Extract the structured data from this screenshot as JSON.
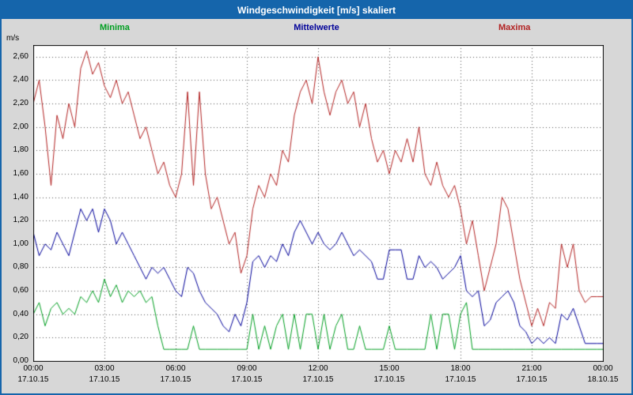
{
  "window": {
    "title": "Windgeschwindigkeit [m/s] skaliert"
  },
  "colors": {
    "titlebar": "#1565ab",
    "page_bg": "#d7d7d7",
    "plot_bg": "#ffffff",
    "plot_border": "#000000",
    "grid": "#555555",
    "minima": "#009e20",
    "mittelwerte": "#000099",
    "maxima": "#b22222"
  },
  "legend": [
    {
      "label": "Minima",
      "color": "#009e20"
    },
    {
      "label": "Mittelwerte",
      "color": "#000099"
    },
    {
      "label": "Maxima",
      "color": "#b22222"
    }
  ],
  "chart_data": {
    "type": "line",
    "title": "Windgeschwindigkeit [m/s] skaliert",
    "ylabel": "m/s",
    "xlabel": "",
    "grid": true,
    "legend_position": "top",
    "ylim": [
      0,
      2.7
    ],
    "ytick_step": 0.2,
    "ytick_labels": [
      "2,60",
      "2,40",
      "2,20",
      "2,00",
      "1,80",
      "1,60",
      "1,40",
      "1,20",
      "1,00",
      "0,80",
      "0,60",
      "0,40",
      "0,20",
      "0,00"
    ],
    "x_hours_span": 24,
    "sample_interval_minutes": 15,
    "xtick_hours": [
      0,
      3,
      6,
      9,
      12,
      15,
      18,
      21,
      24
    ],
    "xtick_times": [
      "00:00",
      "03:00",
      "06:00",
      "09:00",
      "12:00",
      "15:00",
      "18:00",
      "21:00",
      "00:00"
    ],
    "xtick_dates": [
      "17.10.15",
      "17.10.15",
      "17.10.15",
      "17.10.15",
      "17.10.15",
      "17.10.15",
      "17.10.15",
      "17.10.15",
      "18.10.15"
    ],
    "series": [
      {
        "name": "Minima",
        "color": "#009e20",
        "values": [
          0.4,
          0.5,
          0.3,
          0.45,
          0.5,
          0.4,
          0.45,
          0.4,
          0.55,
          0.5,
          0.6,
          0.5,
          0.7,
          0.55,
          0.65,
          0.5,
          0.6,
          0.55,
          0.6,
          0.5,
          0.55,
          0.3,
          0.1,
          0.1,
          0.1,
          0.1,
          0.1,
          0.3,
          0.1,
          0.1,
          0.1,
          0.1,
          0.1,
          0.1,
          0.1,
          0.1,
          0.1,
          0.4,
          0.1,
          0.3,
          0.1,
          0.3,
          0.4,
          0.1,
          0.4,
          0.1,
          0.4,
          0.4,
          0.1,
          0.4,
          0.1,
          0.3,
          0.4,
          0.1,
          0.1,
          0.3,
          0.1,
          0.1,
          0.1,
          0.1,
          0.3,
          0.1,
          0.1,
          0.1,
          0.1,
          0.1,
          0.1,
          0.4,
          0.1,
          0.4,
          0.4,
          0.1,
          0.4,
          0.5,
          0.1,
          0.1,
          0.1,
          0.1,
          0.1,
          0.1,
          0.1,
          0.1,
          0.1,
          0.1,
          0.1,
          0.1,
          0.1,
          0.1,
          0.1,
          0.1,
          0.1,
          0.1,
          0.1,
          0.1,
          0.1,
          0.1,
          0.1
        ]
      },
      {
        "name": "Mittelwerte",
        "color": "#000099",
        "values": [
          1.1,
          0.9,
          1.0,
          0.95,
          1.1,
          1.0,
          0.9,
          1.1,
          1.3,
          1.2,
          1.3,
          1.1,
          1.3,
          1.2,
          1.0,
          1.1,
          1.0,
          0.9,
          0.8,
          0.7,
          0.8,
          0.75,
          0.8,
          0.7,
          0.6,
          0.55,
          0.8,
          0.75,
          0.6,
          0.5,
          0.45,
          0.4,
          0.3,
          0.25,
          0.4,
          0.3,
          0.5,
          0.85,
          0.9,
          0.8,
          0.9,
          0.85,
          1.0,
          0.9,
          1.1,
          1.2,
          1.1,
          1.0,
          1.1,
          1.0,
          0.95,
          1.0,
          1.1,
          1.0,
          0.9,
          0.95,
          0.9,
          0.85,
          0.7,
          0.7,
          0.95,
          0.95,
          0.95,
          0.7,
          0.7,
          0.9,
          0.8,
          0.85,
          0.8,
          0.7,
          0.75,
          0.8,
          0.9,
          0.6,
          0.55,
          0.6,
          0.3,
          0.35,
          0.5,
          0.55,
          0.6,
          0.5,
          0.3,
          0.25,
          0.15,
          0.2,
          0.15,
          0.2,
          0.15,
          0.4,
          0.35,
          0.45,
          0.3,
          0.15,
          0.15,
          0.15,
          0.15
        ]
      },
      {
        "name": "Maxima",
        "color": "#b22222",
        "values": [
          2.2,
          2.4,
          2.0,
          1.5,
          2.1,
          1.9,
          2.2,
          2.0,
          2.5,
          2.65,
          2.45,
          2.55,
          2.35,
          2.25,
          2.4,
          2.2,
          2.3,
          2.1,
          1.9,
          2.0,
          1.8,
          1.6,
          1.7,
          1.5,
          1.4,
          1.6,
          2.3,
          1.5,
          2.3,
          1.6,
          1.3,
          1.4,
          1.2,
          1.0,
          1.1,
          0.75,
          0.9,
          1.3,
          1.5,
          1.4,
          1.6,
          1.5,
          1.8,
          1.7,
          2.1,
          2.3,
          2.4,
          2.2,
          2.6,
          2.3,
          2.1,
          2.3,
          2.4,
          2.2,
          2.3,
          2.0,
          2.2,
          1.9,
          1.7,
          1.8,
          1.6,
          1.8,
          1.7,
          1.9,
          1.7,
          2.0,
          1.6,
          1.5,
          1.7,
          1.5,
          1.4,
          1.5,
          1.3,
          1.0,
          1.2,
          0.9,
          0.6,
          0.8,
          1.0,
          1.4,
          1.3,
          1.0,
          0.7,
          0.5,
          0.3,
          0.45,
          0.3,
          0.5,
          0.45,
          1.0,
          0.8,
          1.0,
          0.6,
          0.5,
          0.55,
          0.55,
          0.55
        ]
      }
    ]
  }
}
